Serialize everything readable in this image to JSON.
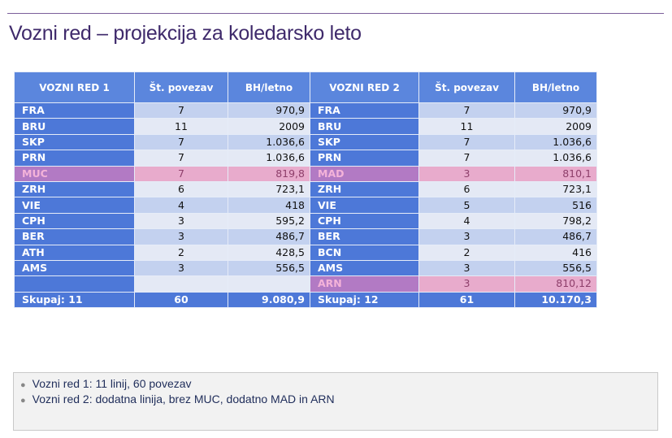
{
  "title": "Vozni red – projekcija za koledarsko leto",
  "colors": {
    "header": "#5b86dd",
    "label": "#4d78d8",
    "row_odd": "#c3d1ef",
    "row_even": "#e4e9f5",
    "highlight": "#e8abcc",
    "highlight_label": "#b27ac4",
    "title": "#3f2a6b"
  },
  "table": {
    "headers": [
      "VOZNI RED 1",
      "Št. povezav",
      "BH/letno",
      "VOZNI RED 2",
      "Št. povezav",
      "BH/letno"
    ],
    "rows": [
      {
        "c": [
          "FRA",
          "7",
          "970,9",
          "FRA",
          "7",
          "970,9"
        ]
      },
      {
        "c": [
          "BRU",
          "11",
          "2009",
          "BRU",
          "11",
          "2009"
        ]
      },
      {
        "c": [
          "SKP",
          "7",
          "1.036,6",
          "SKP",
          "7",
          "1.036,6"
        ]
      },
      {
        "c": [
          "PRN",
          "7",
          "1.036,6",
          "PRN",
          "7",
          "1.036,6"
        ]
      },
      {
        "c": [
          "MUC",
          "7",
          "819,8",
          "MAD",
          "3",
          "810,1"
        ],
        "hl1": true,
        "hl2": true
      },
      {
        "c": [
          "ZRH",
          "6",
          "723,1",
          "ZRH",
          "6",
          "723,1"
        ]
      },
      {
        "c": [
          "VIE",
          "4",
          "418",
          "VIE",
          "5",
          "516"
        ]
      },
      {
        "c": [
          "CPH",
          "3",
          "595,2",
          "CPH",
          "4",
          "798,2"
        ]
      },
      {
        "c": [
          "BER",
          "3",
          "486,7",
          "BER",
          "3",
          "486,7"
        ]
      },
      {
        "c": [
          "ATH",
          "2",
          "428,5",
          "BCN",
          "2",
          "416"
        ]
      },
      {
        "c": [
          "AMS",
          "3",
          "556,5",
          "AMS",
          "3",
          "556,5"
        ]
      },
      {
        "c": [
          "",
          "",
          "",
          "ARN",
          "3",
          "810,12"
        ],
        "hl2": true
      }
    ],
    "total": [
      "Skupaj: 11",
      "60",
      "9.080,9",
      "Skupaj: 12",
      "61",
      "10.170,3"
    ]
  },
  "notes": [
    "Vozni red 1: 11 linij, 60 povezav",
    "Vozni red 2: dodatna linija, brez MUC, dodatno MAD in ARN"
  ]
}
